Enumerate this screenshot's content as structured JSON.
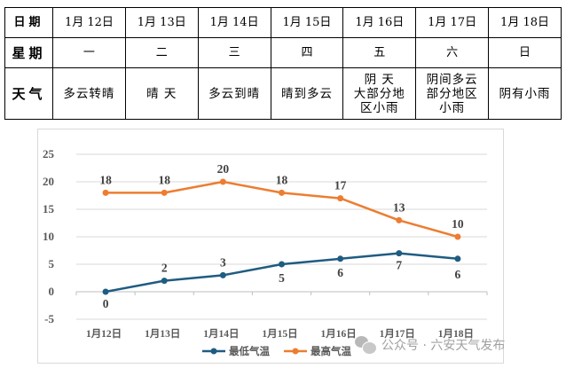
{
  "table": {
    "row_headers": {
      "date": "日期",
      "weekday": "星期",
      "weather": "天气"
    },
    "days": [
      {
        "date": "1月 12日",
        "weekday": "一",
        "weather": "多云转晴"
      },
      {
        "date": "1月 13日",
        "weekday": "二",
        "weather": "晴 天"
      },
      {
        "date": "1月 14日",
        "weekday": "三",
        "weather": "多云到晴"
      },
      {
        "date": "1月 15日",
        "weekday": "四",
        "weather": "晴到多云"
      },
      {
        "date": "1月 16日",
        "weekday": "五",
        "weather": "阴 天\n大部分地\n区小雨"
      },
      {
        "date": "1月 17日",
        "weekday": "六",
        "weather": "阴间多云\n部分地区\n小雨"
      },
      {
        "date": "1月 18日",
        "weekday": "日",
        "weather": "阴有小雨"
      }
    ]
  },
  "chart_data": {
    "type": "line",
    "title": "",
    "xlabel": "",
    "ylabel": "",
    "categories": [
      "1月12日",
      "1月13日",
      "1月14日",
      "1月15日",
      "1月16日",
      "1月17日",
      "1月18日"
    ],
    "series": [
      {
        "name": "最低气温",
        "color": "#1f5c82",
        "values": [
          0,
          2,
          3,
          5,
          6,
          7,
          6
        ]
      },
      {
        "name": "最高气温",
        "color": "#ed7d31",
        "values": [
          18,
          18,
          20,
          18,
          17,
          13,
          10
        ]
      }
    ],
    "ylim": [
      -5,
      25
    ],
    "yticks": [
      -5,
      0,
      5,
      10,
      15,
      20,
      25
    ],
    "grid": true,
    "legend_position": "bottom",
    "data_labels": true
  },
  "watermark": {
    "text": "公众号 · 六安天气发布",
    "icon": "wechat-icon"
  }
}
